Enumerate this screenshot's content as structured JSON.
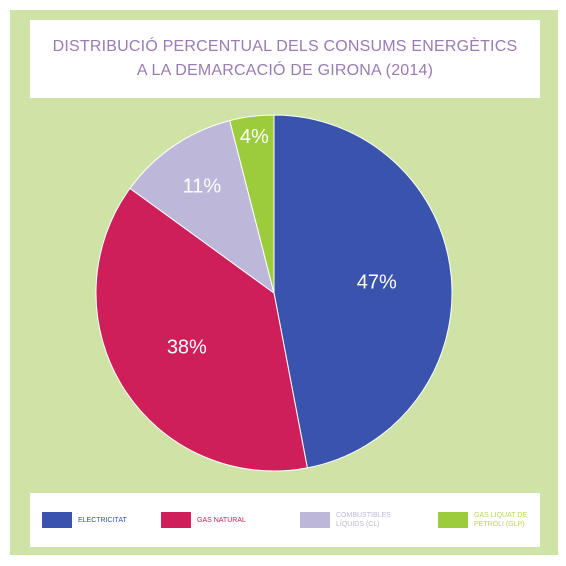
{
  "chart_data": {
    "type": "pie",
    "title_lines": [
      "DISTRIBUCIÓ PERCENTUAL DELS CONSUMS ENERGÈTICS",
      "A LA DEMARCACIÓ DE GIRONA (2014)"
    ],
    "slices": [
      {
        "label": "ELECTRICITAT",
        "value": 47,
        "display": "47%",
        "color": "#3a54ad"
      },
      {
        "label": "GAS NATURAL",
        "value": 38,
        "display": "38%",
        "color": "#cf1f5a"
      },
      {
        "label": "COMBUSTIBLES\nLÍQUIDS (CL)",
        "value": 11,
        "display": "11%",
        "color": "#bdb8da"
      },
      {
        "label": "GAS LIQUAT DE\nPETROLI (GLP)",
        "value": 4,
        "display": "4%",
        "color": "#9ccc3c"
      }
    ],
    "legend_text_colors": [
      "#3a54ad",
      "#cf1f5a",
      "#bdb8da",
      "#b7d94a"
    ],
    "legend_position": "bottom",
    "background_color": "#cfe3a6"
  }
}
